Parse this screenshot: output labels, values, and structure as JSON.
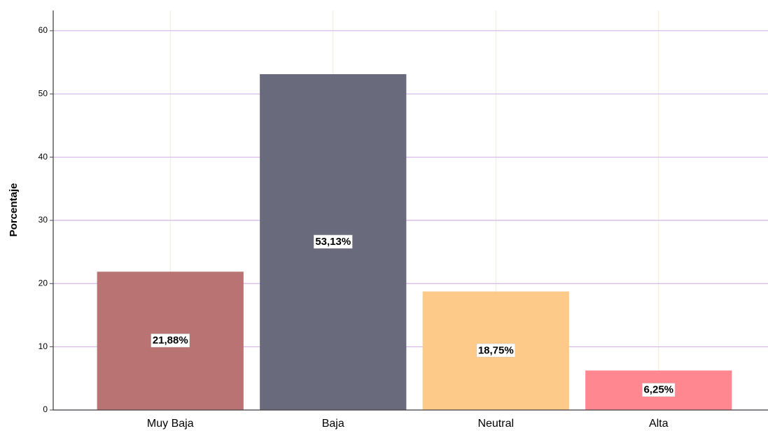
{
  "chart_data": {
    "type": "bar",
    "y_label": "Porcentaje",
    "categories": [
      "Muy Baja",
      "Baja",
      "Neutral",
      "Alta"
    ],
    "values": [
      21.88,
      53.13,
      18.75,
      6.25
    ],
    "value_labels": [
      "21,88%",
      "53,13%",
      "18,75%",
      "6,25%"
    ],
    "colors": [
      "#b87372",
      "#696b7c",
      "#fdca8a",
      "#fe8790"
    ],
    "ylim": [
      0,
      63.2
    ],
    "yticks": [
      0,
      10,
      20,
      30,
      40,
      50,
      60
    ],
    "grid": true
  }
}
